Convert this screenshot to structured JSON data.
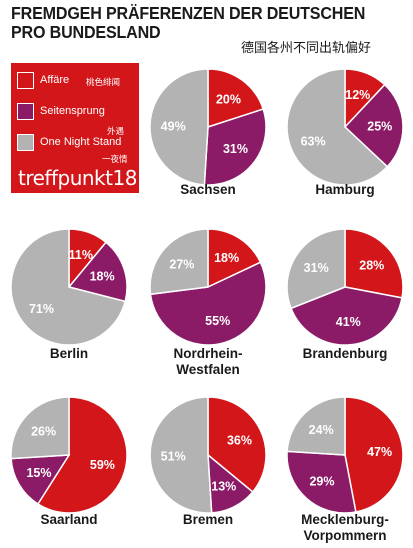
{
  "header": {
    "title_line1": "FREMDGEH PRÄFERENZEN DER DEUTSCHEN",
    "title_line2": "PRO BUNDESLAND",
    "subtitle_cn": "德国各州不同出轨偏好"
  },
  "legend": {
    "items": [
      {
        "label": "Affäre",
        "label_cn": "桃色绯闻",
        "color": "#d3161a"
      },
      {
        "label": "Seitensprung",
        "label_cn": "外遇",
        "color": "#8b1b66"
      },
      {
        "label": "One Night Stand",
        "label_cn": "一夜情",
        "color": "#b3b3b3"
      }
    ],
    "brand": "treffpunkt18"
  },
  "chart_data": [
    {
      "type": "pie",
      "title": "Sachsen",
      "categories": [
        "Affäre",
        "Seitensprung",
        "One Night Stand"
      ],
      "values": [
        20,
        31,
        49
      ],
      "labels": [
        "20%",
        "31%",
        "49%"
      ]
    },
    {
      "type": "pie",
      "title": "Hamburg",
      "categories": [
        "Affäre",
        "Seitensprung",
        "One Night Stand"
      ],
      "values": [
        12,
        25,
        63
      ],
      "labels": [
        "12%",
        "25%",
        "63%"
      ]
    },
    {
      "type": "pie",
      "title": "Berlin",
      "categories": [
        "Affäre",
        "Seitensprung",
        "One Night Stand"
      ],
      "values": [
        11,
        18,
        71
      ],
      "labels": [
        "11%",
        "18%",
        "71%"
      ]
    },
    {
      "type": "pie",
      "title": "Nordrhein-Westfalen",
      "title_lines": [
        "Nordrhein-",
        "Westfalen"
      ],
      "categories": [
        "Affäre",
        "Seitensprung",
        "One Night Stand"
      ],
      "values": [
        18,
        55,
        27
      ],
      "labels": [
        "18%",
        "55%",
        "27%"
      ]
    },
    {
      "type": "pie",
      "title": "Brandenburg",
      "categories": [
        "Affäre",
        "Seitensprung",
        "One Night Stand"
      ],
      "values": [
        28,
        41,
        31
      ],
      "labels": [
        "28%",
        "41%",
        "31%"
      ]
    },
    {
      "type": "pie",
      "title": "Saarland",
      "categories": [
        "Affäre",
        "Seitensprung",
        "One Night Stand"
      ],
      "values": [
        59,
        15,
        26
      ],
      "labels": [
        "59%",
        "15%",
        "26%"
      ]
    },
    {
      "type": "pie",
      "title": "Bremen",
      "categories": [
        "Affäre",
        "Seitensprung",
        "One Night Stand"
      ],
      "values": [
        36,
        13,
        51
      ],
      "labels": [
        "36%",
        "13%",
        "51%"
      ]
    },
    {
      "type": "pie",
      "title": "Mecklenburg-Vorpommern",
      "title_lines": [
        "Mecklenburg-",
        "Vorpommern"
      ],
      "categories": [
        "Affäre",
        "Seitensprung",
        "One Night Stand"
      ],
      "values": [
        47,
        29,
        24
      ],
      "labels": [
        "47%",
        "29%",
        "24%"
      ]
    }
  ]
}
